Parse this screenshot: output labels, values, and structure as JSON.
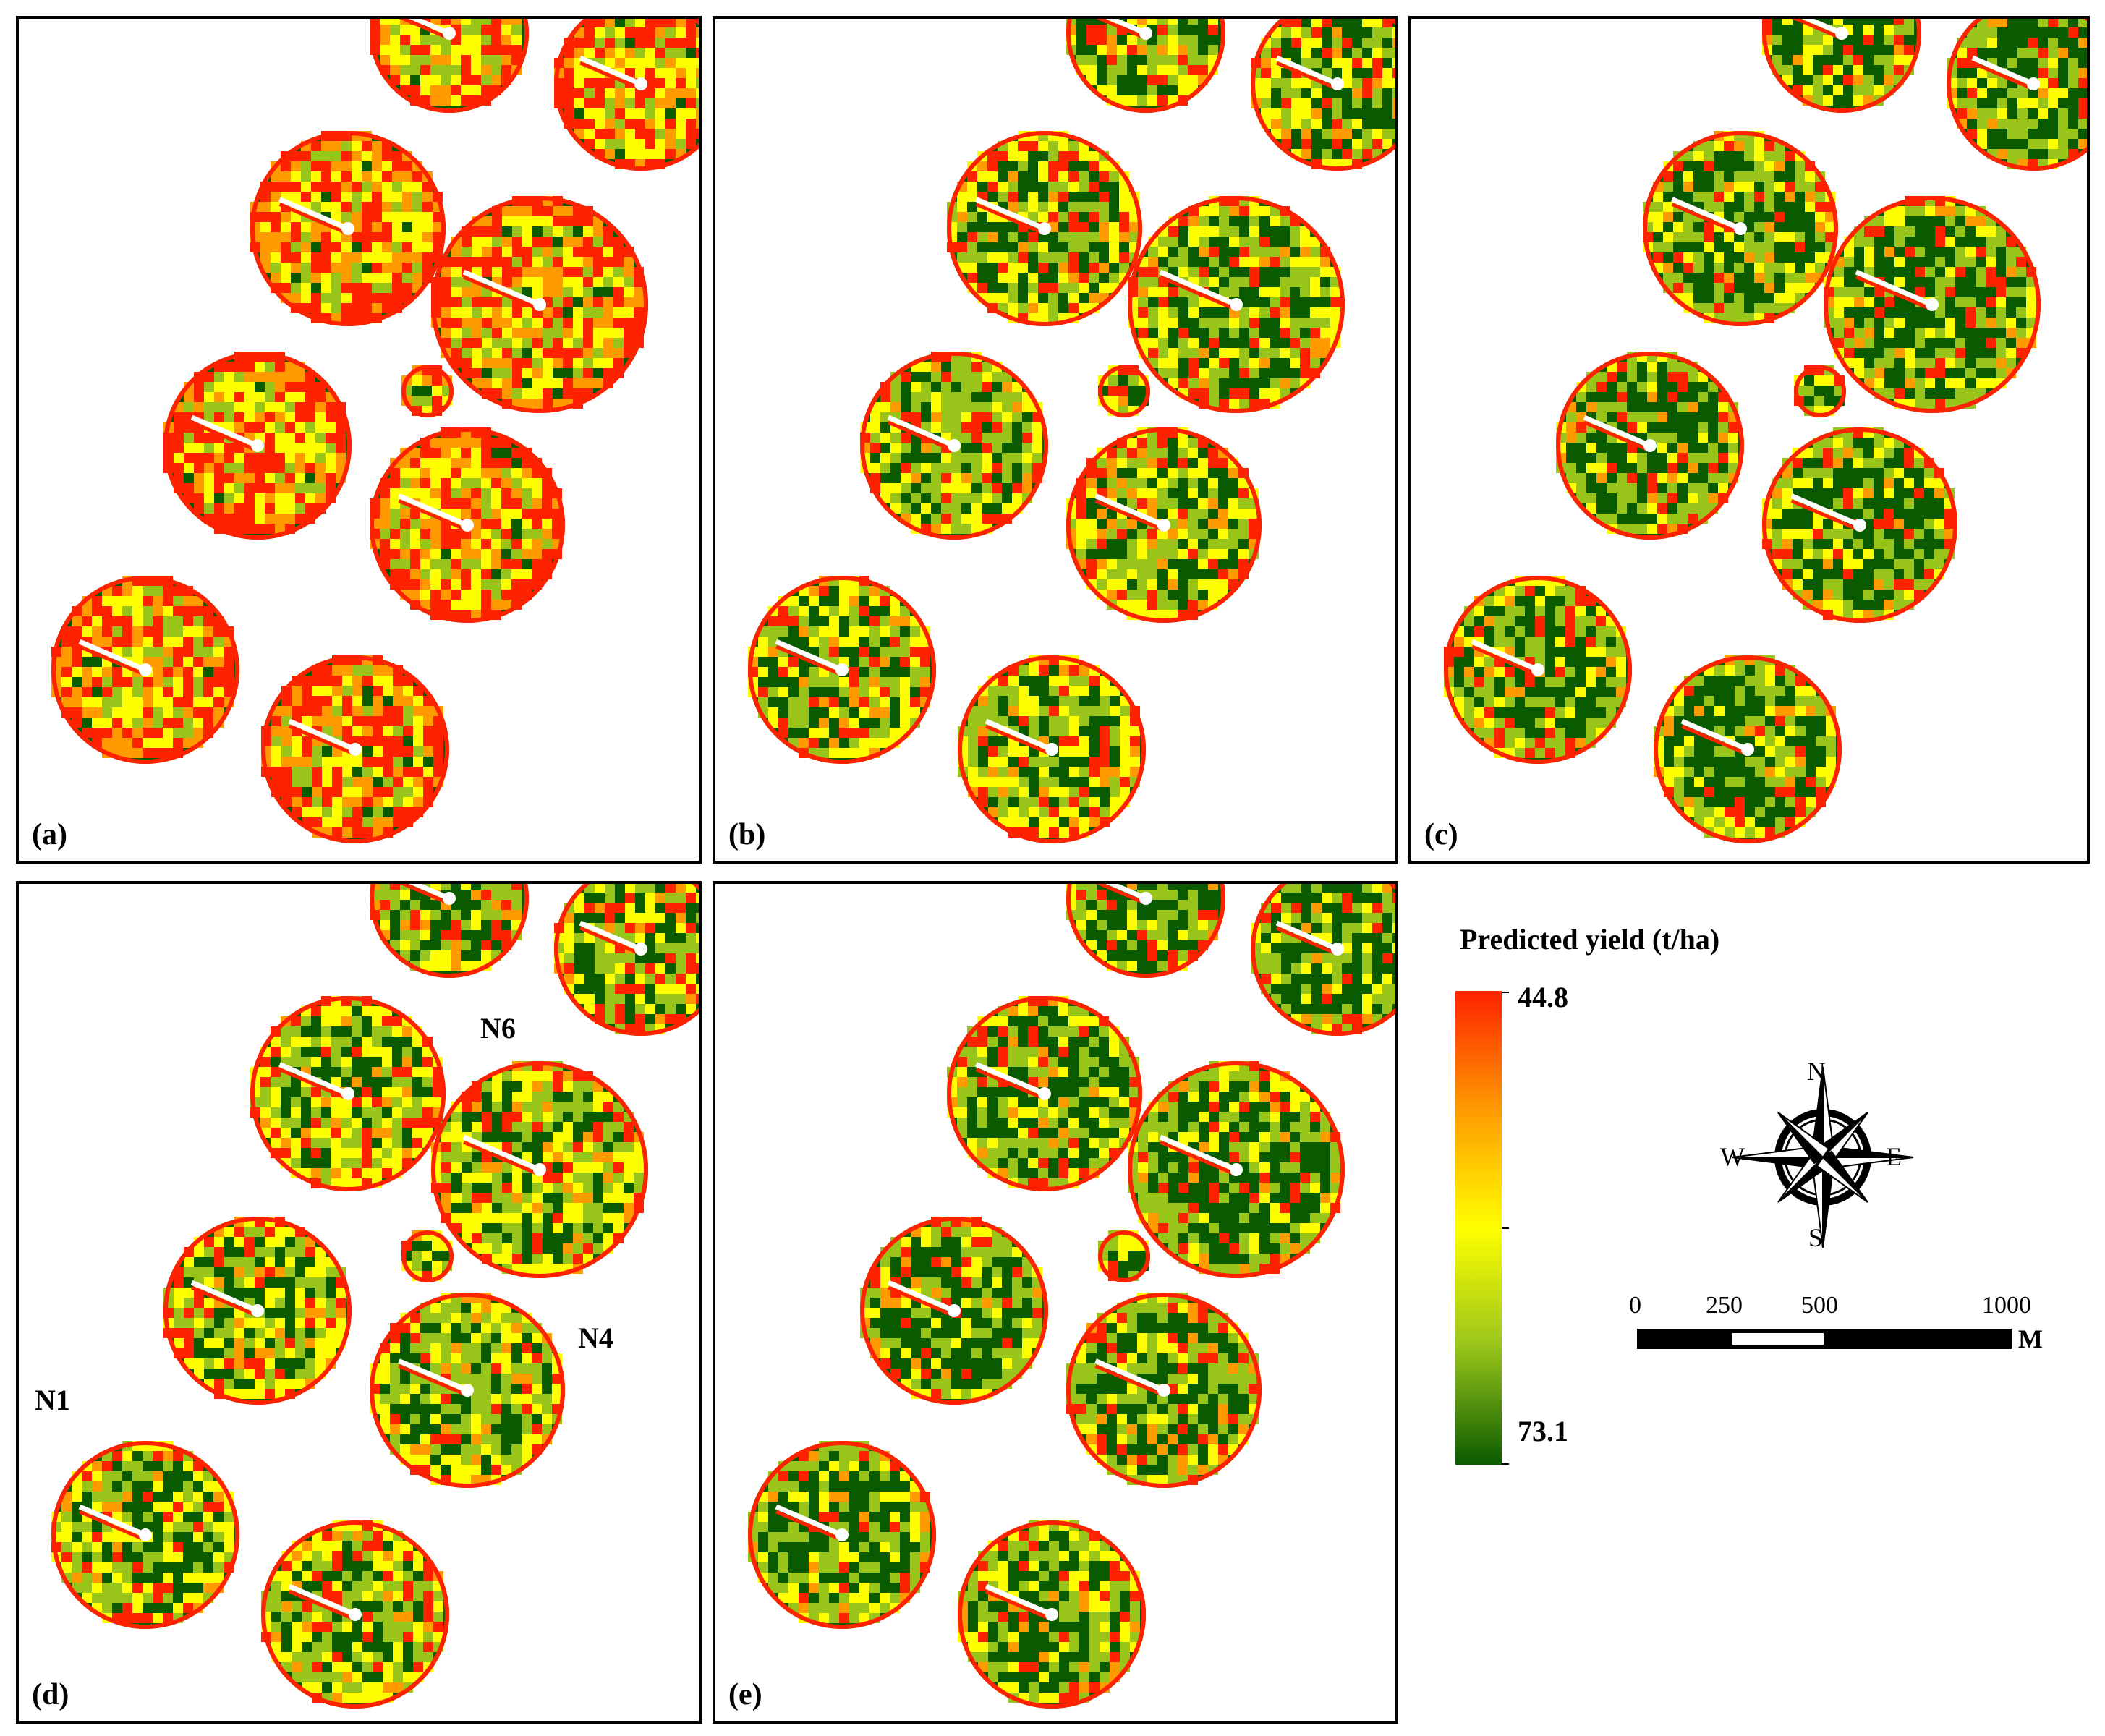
{
  "panels": [
    {
      "label": "(a)",
      "tone": "low"
    },
    {
      "label": "(b)",
      "tone": "mid"
    },
    {
      "label": "(c)",
      "tone": "high"
    },
    {
      "label": "(d)",
      "tone": "mid"
    },
    {
      "label": "(e)",
      "tone": "high"
    }
  ],
  "field_labels": {
    "n1": "N1",
    "n4": "N4",
    "n6": "N6"
  },
  "legend": {
    "title": "Predicted yield (t/ha)",
    "max_label": "44.8",
    "min_label": "73.1",
    "colors": [
      "#ff2200",
      "#ff9a00",
      "#ffff00",
      "#99c51a",
      "#0a5a00"
    ]
  },
  "compass": {
    "n": "N",
    "s": "S",
    "e": "E",
    "w": "W"
  },
  "scale_bar": {
    "labels": [
      "0",
      "250",
      "500",
      "1000"
    ],
    "unit": "M"
  }
}
